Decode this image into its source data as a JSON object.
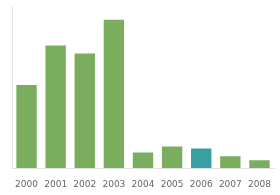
{
  "chart_data": {
    "type": "bar",
    "categories": [
      "2000",
      "2001",
      "2002",
      "2003",
      "2004",
      "2005",
      "2006",
      "2007",
      "2008"
    ],
    "values": [
      42,
      62,
      58,
      75,
      8,
      11,
      10,
      6,
      4
    ],
    "colors": [
      "#7aad5e",
      "#7aad5e",
      "#7aad5e",
      "#7aad5e",
      "#7aad5e",
      "#7aad5e",
      "#3a9fa0",
      "#7aad5e",
      "#7aad5e"
    ],
    "ylim": [
      0,
      82
    ],
    "yticks": [],
    "grid": false,
    "tick_labels": "x"
  }
}
